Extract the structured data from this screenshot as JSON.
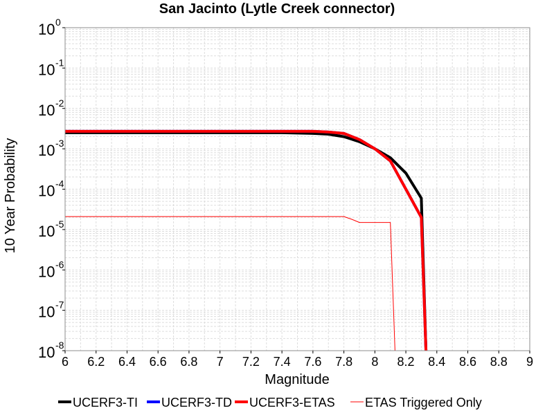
{
  "chart_data": {
    "type": "line",
    "title": "San Jacinto (Lytle Creek connector)",
    "xlabel": "Magnitude",
    "ylabel": "10 Year Probability",
    "xlim": [
      6,
      9
    ],
    "ylim": [
      1e-08,
      1
    ],
    "y_scale": "log",
    "grid": true,
    "legend_position": "bottom",
    "x_ticks": [
      "6",
      "6.2",
      "6.4",
      "6.6",
      "6.8",
      "7",
      "7.2",
      "7.4",
      "7.6",
      "7.8",
      "8",
      "8.2",
      "8.4",
      "8.6",
      "8.8",
      "9"
    ],
    "y_ticks": [
      {
        "base": "10",
        "exp": "0"
      },
      {
        "base": "10",
        "exp": "-1"
      },
      {
        "base": "10",
        "exp": "-2"
      },
      {
        "base": "10",
        "exp": "-3"
      },
      {
        "base": "10",
        "exp": "-4"
      },
      {
        "base": "10",
        "exp": "-5"
      },
      {
        "base": "10",
        "exp": "-6"
      },
      {
        "base": "10",
        "exp": "-7"
      },
      {
        "base": "10",
        "exp": "-8"
      }
    ],
    "series": [
      {
        "name": "UCERF3-TI",
        "color": "#000000",
        "style": "thick",
        "x": [
          6.0,
          6.2,
          6.4,
          6.6,
          6.8,
          7.0,
          7.2,
          7.4,
          7.6,
          7.7,
          7.8,
          7.9,
          8.0,
          8.1,
          8.2,
          8.3,
          8.33
        ],
        "y": [
          0.0025,
          0.0025,
          0.0025,
          0.0025,
          0.0025,
          0.0025,
          0.0025,
          0.0025,
          0.0024,
          0.0023,
          0.002,
          0.0015,
          0.001,
          0.0006,
          0.00025,
          6e-05,
          1e-08
        ]
      },
      {
        "name": "UCERF3-TD",
        "color": "#0000ff",
        "style": "thick",
        "x": [
          6.0,
          6.2,
          6.4,
          6.6,
          6.8,
          7.0,
          7.2,
          7.4,
          7.6,
          7.7,
          7.8,
          7.9,
          8.0,
          8.1,
          8.2,
          8.3,
          8.33
        ],
        "y": [
          0.0027,
          0.0027,
          0.0027,
          0.0027,
          0.0027,
          0.0027,
          0.0027,
          0.0027,
          0.0027,
          0.0026,
          0.0024,
          0.0017,
          0.001,
          0.0005,
          0.0001,
          2e-05,
          1e-08
        ]
      },
      {
        "name": "UCERF3-ETAS",
        "color": "#ff0000",
        "style": "thick",
        "x": [
          6.0,
          6.2,
          6.4,
          6.6,
          6.8,
          7.0,
          7.2,
          7.4,
          7.6,
          7.7,
          7.8,
          7.9,
          8.0,
          8.1,
          8.2,
          8.3,
          8.33
        ],
        "y": [
          0.0027,
          0.0027,
          0.0027,
          0.0027,
          0.0027,
          0.0027,
          0.0027,
          0.0027,
          0.0027,
          0.0026,
          0.0024,
          0.0017,
          0.001,
          0.0005,
          0.0001,
          2e-05,
          1e-08
        ]
      },
      {
        "name": "ETAS Triggered Only",
        "color": "#ff0000",
        "style": "thin",
        "x": [
          6.0,
          7.8,
          7.85,
          7.9,
          8.0,
          8.1,
          8.13
        ],
        "y": [
          2.1e-05,
          2.1e-05,
          1.8e-05,
          1.5e-05,
          1.5e-05,
          1.5e-05,
          1e-08
        ]
      }
    ]
  }
}
